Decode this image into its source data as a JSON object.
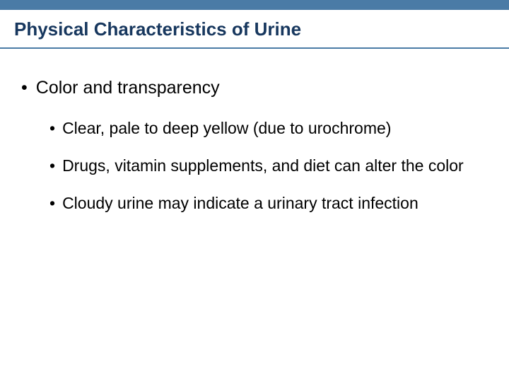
{
  "colors": {
    "header_bar": "#4a7ba6",
    "title_text": "#17375e",
    "title_underline": "#4a7ba6",
    "body_text": "#000000",
    "background": "#ffffff"
  },
  "title": "Physical Characteristics of Urine",
  "bullets": {
    "l1": {
      "text": "Color and transparency"
    },
    "l2_items": [
      {
        "text": "Clear, pale to deep yellow (due to urochrome)"
      },
      {
        "text": "Drugs, vitamin supplements, and diet can alter the color"
      },
      {
        "text": "Cloudy urine may indicate a urinary tract infection"
      }
    ]
  },
  "bullet_marker": "•",
  "typography": {
    "title_fontsize": 26,
    "l1_fontsize": 25,
    "l2_fontsize": 23,
    "font_family": "Arial"
  }
}
